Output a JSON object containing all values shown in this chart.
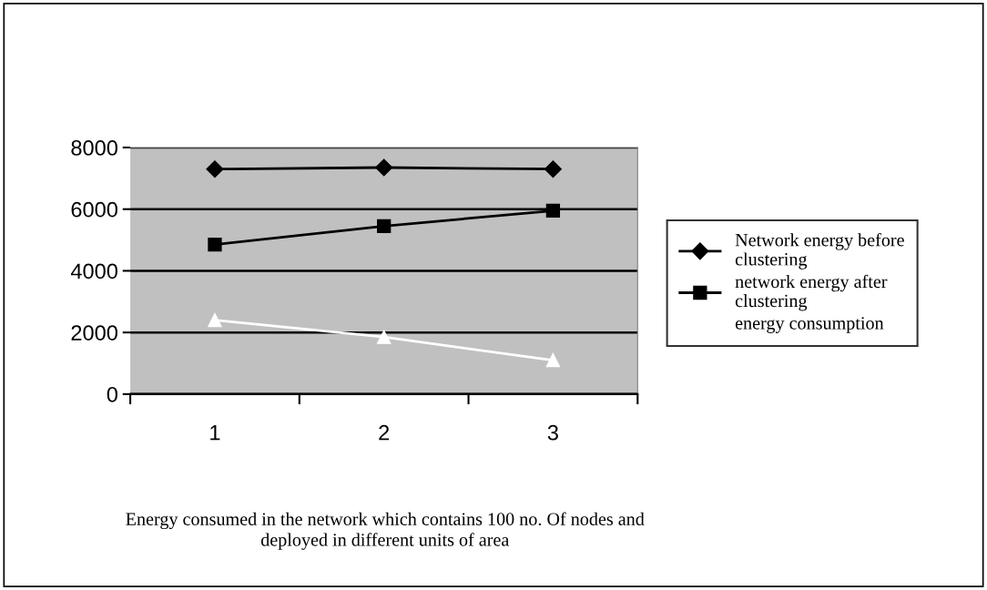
{
  "chart_data": {
    "type": "line",
    "categories": [
      "1",
      "2",
      "3"
    ],
    "series": [
      {
        "name": "Network energy before clustering",
        "color": "#000000",
        "marker": "diamond",
        "values": [
          7300,
          7350,
          7300
        ]
      },
      {
        "name": "network energy after clustering",
        "color": "#000000",
        "marker": "square",
        "values": [
          4850,
          5450,
          5950
        ]
      },
      {
        "name": "energy consumption",
        "color": "#ffffff",
        "marker": "triangle",
        "values": [
          2400,
          1850,
          1100
        ]
      }
    ],
    "ylim": [
      0,
      8000
    ],
    "yticks": [
      0,
      2000,
      4000,
      6000,
      8000
    ],
    "grid": "y",
    "legend": "right",
    "annotations": [
      "Energy consumed in the network which contains 100 no. Of nodes and\ndeployed in different units of area"
    ]
  }
}
